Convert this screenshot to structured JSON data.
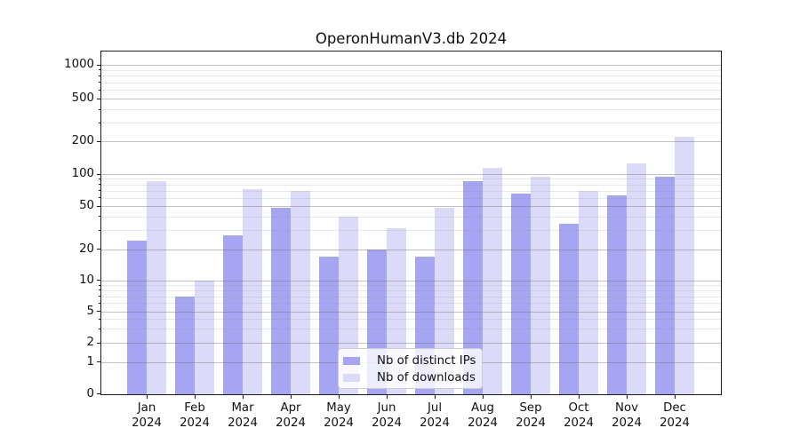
{
  "chart_data": {
    "type": "bar",
    "title": "OperonHumanV3.db 2024",
    "categories": [
      "Jan",
      "Feb",
      "Mar",
      "Apr",
      "May",
      "Jun",
      "Jul",
      "Aug",
      "Sep",
      "Oct",
      "Nov",
      "Dec"
    ],
    "category_year": "2024",
    "series": [
      {
        "name": "Nb of distinct IPs",
        "color": "#a5a5f2",
        "values": [
          24,
          7,
          27,
          48,
          17,
          20,
          17,
          85,
          65,
          34,
          63,
          94
        ]
      },
      {
        "name": "Nb of downloads",
        "color": "#dbdbf9",
        "values": [
          85,
          10,
          72,
          70,
          40,
          31,
          48,
          114,
          94,
          70,
          125,
          220
        ]
      }
    ],
    "xlabel": "",
    "ylabel": "",
    "yscale": "symlog",
    "yticks": [
      0,
      1,
      2,
      5,
      10,
      20,
      50,
      100,
      200,
      500,
      1000
    ],
    "yminorticks": [
      3,
      4,
      6,
      7,
      8,
      9,
      30,
      40,
      60,
      70,
      80,
      90,
      300,
      400,
      600,
      700,
      800,
      900
    ],
    "ylim": [
      0,
      1330
    ],
    "grid": "both",
    "legend_position": "lower center"
  },
  "colors": {
    "major_grid": "rgba(110,110,110,0.42)",
    "minor_grid": "rgba(150,150,150,0.22)",
    "spine": "#1a1a1a",
    "text": "#111111",
    "background": "#ffffff"
  }
}
